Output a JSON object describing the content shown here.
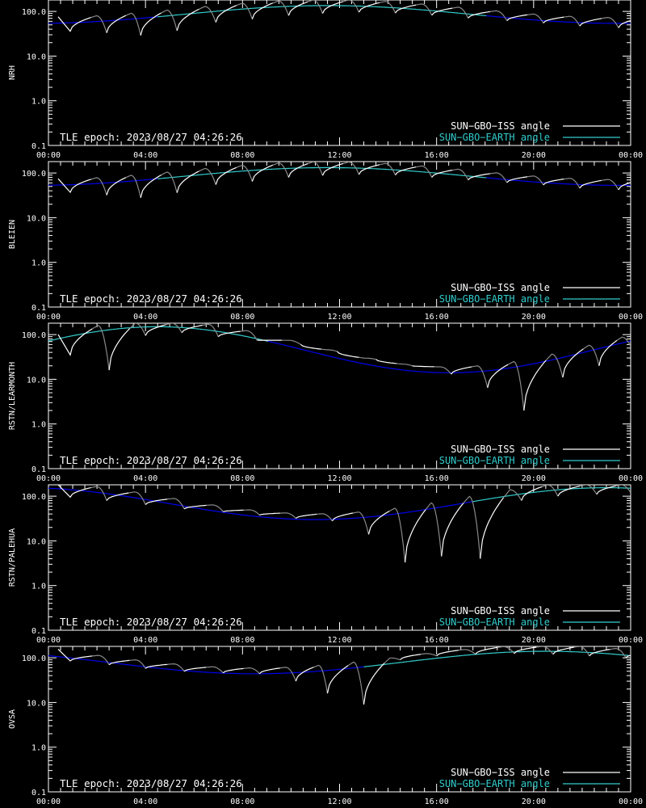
{
  "colors": {
    "background": "#000000",
    "frame": "#ffffff",
    "iss_daylight": "#ffffff",
    "iss_night": "#888888",
    "earth_day": "#33cccc",
    "earth_night": "#0000ee"
  },
  "chart_data": [
    {
      "type": "line",
      "ylabel": "NRH",
      "xlim": [
        "00:00",
        "24:00"
      ],
      "xticks": [
        "00:00",
        "04:00",
        "08:00",
        "12:00",
        "16:00",
        "20:00",
        "00:00"
      ],
      "yscale": "log",
      "ylim": [
        0.1,
        180
      ],
      "yticks": [
        "0.1",
        "1.0",
        "10.0",
        "100.0"
      ],
      "annotation": "TLE epoch: 2023/08/27 04:26:26",
      "legend": [
        "SUN−GBO−ISS angle",
        "SUN−GBO−EARTH angle"
      ],
      "legend_position": "bottom-right",
      "earth_min": {
        "x": 0,
        "y": 54
      },
      "earth_max": {
        "x": 11.5,
        "y": 135
      },
      "earth_day_range": [
        4.5,
        18.0
      ],
      "iss_dips": [
        {
          "x": 0.9,
          "y": 36
        },
        {
          "x": 2.4,
          "y": 33
        },
        {
          "x": 3.8,
          "y": 29
        },
        {
          "x": 5.3,
          "y": 37
        },
        {
          "x": 6.9,
          "y": 57
        },
        {
          "x": 8.4,
          "y": 67
        },
        {
          "x": 9.9,
          "y": 81
        },
        {
          "x": 11.3,
          "y": 90
        },
        {
          "x": 12.8,
          "y": 96
        },
        {
          "x": 14.3,
          "y": 92
        },
        {
          "x": 15.8,
          "y": 82
        },
        {
          "x": 17.3,
          "y": 71
        },
        {
          "x": 18.9,
          "y": 62
        },
        {
          "x": 20.4,
          "y": 55
        },
        {
          "x": 21.9,
          "y": 47
        },
        {
          "x": 23.5,
          "y": 43
        }
      ]
    },
    {
      "type": "line",
      "ylabel": "BLEIEN",
      "xlim": [
        "00:00",
        "24:00"
      ],
      "xticks": [
        "00:00",
        "04:00",
        "08:00",
        "12:00",
        "16:00",
        "20:00",
        "00:00"
      ],
      "yscale": "log",
      "ylim": [
        0.1,
        180
      ],
      "yticks": [
        "0.1",
        "1.0",
        "10.0",
        "100.0"
      ],
      "annotation": "TLE epoch: 2023/08/27 04:26:26",
      "legend": [
        "SUN−GBO−ISS angle",
        "SUN−GBO−EARTH angle"
      ],
      "legend_position": "bottom-right",
      "earth_min": {
        "x": 0,
        "y": 53
      },
      "earth_max": {
        "x": 11.5,
        "y": 132
      },
      "earth_day_range": [
        4.5,
        18.0
      ],
      "iss_dips": [
        {
          "x": 0.9,
          "y": 37
        },
        {
          "x": 2.4,
          "y": 32
        },
        {
          "x": 3.8,
          "y": 28
        },
        {
          "x": 5.3,
          "y": 36
        },
        {
          "x": 6.9,
          "y": 55
        },
        {
          "x": 8.4,
          "y": 65
        },
        {
          "x": 9.9,
          "y": 80
        },
        {
          "x": 11.3,
          "y": 88
        },
        {
          "x": 12.8,
          "y": 93
        },
        {
          "x": 14.3,
          "y": 90
        },
        {
          "x": 15.8,
          "y": 80
        },
        {
          "x": 17.3,
          "y": 70
        },
        {
          "x": 18.9,
          "y": 61
        },
        {
          "x": 20.4,
          "y": 54
        },
        {
          "x": 21.9,
          "y": 46
        },
        {
          "x": 23.5,
          "y": 42
        }
      ]
    },
    {
      "type": "line",
      "ylabel": "RSTN/LEARMONTH",
      "xlim": [
        "00:00",
        "24:00"
      ],
      "xticks": [
        "00:00",
        "04:00",
        "08:00",
        "12:00",
        "16:00",
        "20:00",
        "00:00"
      ],
      "yscale": "log",
      "ylim": [
        0.1,
        180
      ],
      "yticks": [
        "0.1",
        "1.0",
        "10.0",
        "100.0"
      ],
      "annotation": "TLE epoch: 2023/08/27 04:26:26",
      "legend": [
        "SUN−GBO−ISS angle",
        "SUN−GBO−EARTH angle"
      ],
      "legend_position": "bottom-right",
      "earth_min": {
        "x": 16.5,
        "y": 14
      },
      "earth_max": {
        "x": 4.5,
        "y": 150
      },
      "earth_day_range": [
        -1,
        9.0
      ],
      "iss_dips": [
        {
          "x": 0.9,
          "y": 35
        },
        {
          "x": 2.5,
          "y": 16
        },
        {
          "x": 4.0,
          "y": 95
        },
        {
          "x": 5.5,
          "y": 110
        },
        {
          "x": 7.0,
          "y": 90
        },
        {
          "x": 8.6,
          "y": 75
        },
        {
          "x": 10.4,
          "y": 60
        },
        {
          "x": 11.9,
          "y": 42
        },
        {
          "x": 13.5,
          "y": 28
        },
        {
          "x": 15.0,
          "y": 20
        },
        {
          "x": 16.6,
          "y": 13
        },
        {
          "x": 18.1,
          "y": 6.5
        },
        {
          "x": 19.6,
          "y": 2.0
        },
        {
          "x": 21.2,
          "y": 11
        },
        {
          "x": 22.7,
          "y": 20
        },
        {
          "x": 24.0,
          "y": 55
        }
      ]
    },
    {
      "type": "line",
      "ylabel": "RSTN/PALEHUA",
      "xlim": [
        "00:00",
        "24:00"
      ],
      "xticks": [
        "00:00",
        "04:00",
        "08:00",
        "12:00",
        "16:00",
        "20:00",
        "00:00"
      ],
      "yscale": "log",
      "ylim": [
        0.1,
        180
      ],
      "yticks": [
        "0.1",
        "1.0",
        "10.0",
        "100.0"
      ],
      "annotation": "TLE epoch: 2023/08/27 04:26:26",
      "legend": [
        "SUN−GBO−ISS angle",
        "SUN−GBO−EARTH angle"
      ],
      "legend_position": "bottom-right",
      "earth_min": {
        "x": 11.0,
        "y": 30
      },
      "earth_max": {
        "x": 23.0,
        "y": 155
      },
      "earth_day_range": [
        17.5,
        25
      ],
      "iss_dips": [
        {
          "x": 0.9,
          "y": 95
        },
        {
          "x": 2.4,
          "y": 80
        },
        {
          "x": 4.0,
          "y": 65
        },
        {
          "x": 5.6,
          "y": 52
        },
        {
          "x": 7.2,
          "y": 45
        },
        {
          "x": 8.7,
          "y": 38
        },
        {
          "x": 10.2,
          "y": 32
        },
        {
          "x": 11.7,
          "y": 28
        },
        {
          "x": 13.2,
          "y": 14
        },
        {
          "x": 14.7,
          "y": 3.3
        },
        {
          "x": 16.2,
          "y": 4.5
        },
        {
          "x": 17.8,
          "y": 4.0
        },
        {
          "x": 19.5,
          "y": 80
        },
        {
          "x": 21.0,
          "y": 100
        },
        {
          "x": 22.6,
          "y": 110
        },
        {
          "x": 24.0,
          "y": 120
        }
      ]
    },
    {
      "type": "line",
      "ylabel": "OVSA",
      "xlim": [
        "00:00",
        "24:00"
      ],
      "xticks": [
        "00:00",
        "04:00",
        "08:00",
        "12:00",
        "16:00",
        "20:00",
        "00:00"
      ],
      "yscale": "log",
      "ylim": [
        0.1,
        180
      ],
      "yticks": [
        "0.1",
        "1.0",
        "10.0",
        "100.0"
      ],
      "annotation": "TLE epoch: 2023/08/27 04:26:26",
      "legend": [
        "SUN−GBO−ISS angle",
        "SUN−GBO−EARTH angle"
      ],
      "legend_position": "bottom-right",
      "earth_min": {
        "x": 9.0,
        "y": 44
      },
      "earth_max": {
        "x": 20.5,
        "y": 140
      },
      "earth_day_range": [
        13.0,
        25
      ],
      "iss_dips": [
        {
          "x": 0.9,
          "y": 85
        },
        {
          "x": 2.5,
          "y": 70
        },
        {
          "x": 4.0,
          "y": 58
        },
        {
          "x": 5.6,
          "y": 50
        },
        {
          "x": 7.2,
          "y": 46
        },
        {
          "x": 8.7,
          "y": 44
        },
        {
          "x": 10.2,
          "y": 30
        },
        {
          "x": 11.5,
          "y": 16
        },
        {
          "x": 13.0,
          "y": 9
        },
        {
          "x": 14.5,
          "y": 90
        },
        {
          "x": 16.0,
          "y": 110
        },
        {
          "x": 17.6,
          "y": 120
        },
        {
          "x": 19.2,
          "y": 125
        },
        {
          "x": 20.8,
          "y": 120
        },
        {
          "x": 22.3,
          "y": 110
        },
        {
          "x": 23.8,
          "y": 100
        }
      ]
    }
  ]
}
